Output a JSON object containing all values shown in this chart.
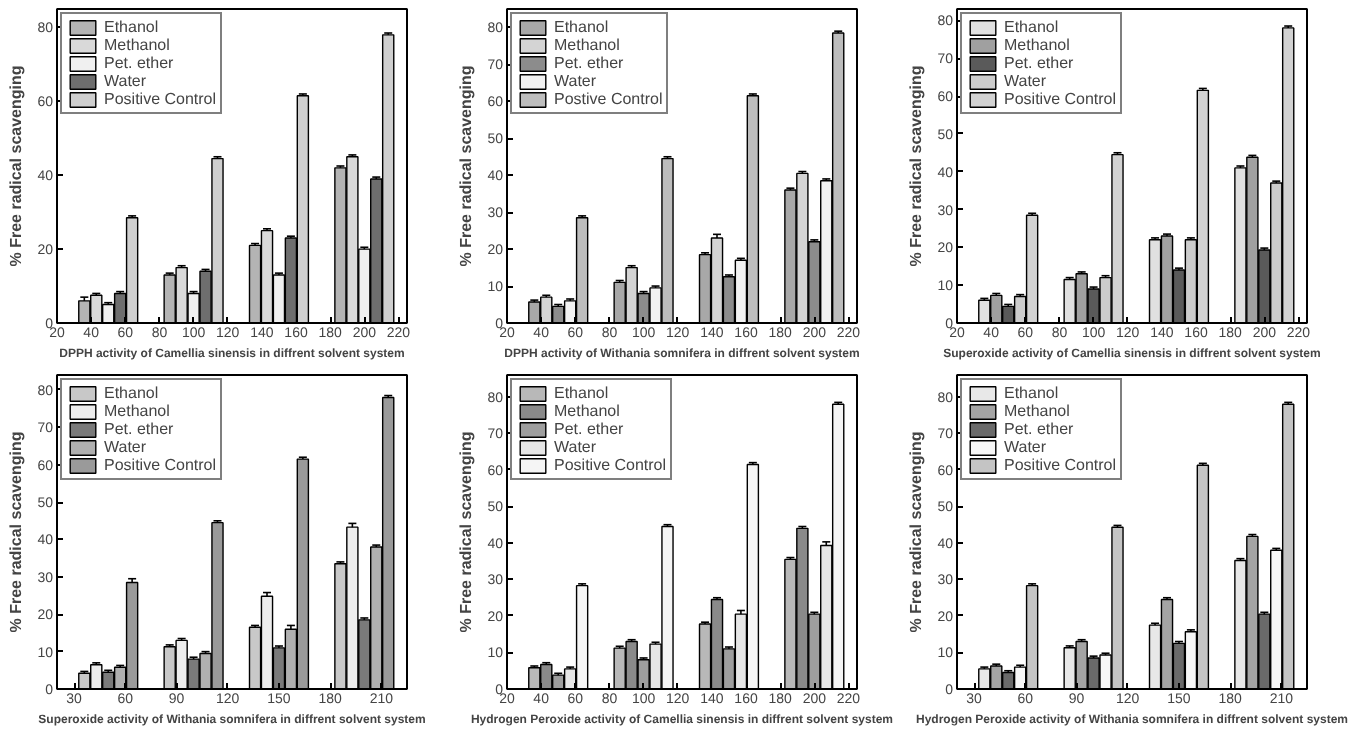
{
  "chart_data": [
    {
      "type": "bar",
      "xlabel": "DPPH activity of Camellia sinensis in diffrent solvent system",
      "ylabel": "% Free radical scavenging",
      "xlim": [
        20,
        225
      ],
      "xticks": [
        20,
        40,
        60,
        80,
        100,
        120,
        140,
        160,
        180,
        200,
        220
      ],
      "ylim": [
        0,
        85
      ],
      "yticks": [
        0,
        20,
        40,
        60,
        80
      ],
      "legend": "top left",
      "grid": false,
      "series": [
        {
          "name": "Ethanol",
          "color": "#b4b4b4",
          "x": [
            36,
            86,
            136,
            186
          ],
          "values": [
            6,
            13,
            21,
            42
          ],
          "errors": [
            1,
            0.5,
            0.5,
            0.5
          ]
        },
        {
          "name": "Methanol",
          "color": "#d9d9d9",
          "x": [
            43,
            93,
            143,
            193
          ],
          "values": [
            7.5,
            15,
            25,
            45
          ],
          "errors": [
            0.5,
            0.5,
            0.5,
            0.5
          ]
        },
        {
          "name": "Pet. ether",
          "color": "#f0f0f0",
          "x": [
            50,
            100,
            150,
            200
          ],
          "values": [
            5,
            8,
            13,
            20
          ],
          "errors": [
            0.5,
            0.5,
            0.5,
            0.5
          ]
        },
        {
          "name": "Water",
          "color": "#6e6e6e",
          "x": [
            57,
            107,
            157,
            207
          ],
          "values": [
            8,
            14,
            23,
            39
          ],
          "errors": [
            0.5,
            0.5,
            0.5,
            0.5
          ]
        },
        {
          "name": "Positive Control",
          "color": "#cfcfcf",
          "x": [
            64,
            114,
            164,
            214
          ],
          "values": [
            28.5,
            44.5,
            61.5,
            78
          ],
          "errors": [
            0.5,
            0.5,
            0.5,
            0.5
          ]
        }
      ]
    },
    {
      "type": "bar",
      "xlabel": "DPPH activity of Withania somnifera in diffrent solvent system",
      "ylabel": "% Free radical scavenging",
      "xlim": [
        20,
        225
      ],
      "xticks": [
        20,
        40,
        60,
        80,
        100,
        120,
        140,
        160,
        180,
        200,
        220
      ],
      "ylim": [
        0,
        85
      ],
      "yticks": [
        0,
        10,
        20,
        30,
        40,
        50,
        60,
        70,
        80
      ],
      "legend": "top left",
      "grid": false,
      "series": [
        {
          "name": "Ethanol",
          "color": "#a8a8a8",
          "x": [
            36,
            86,
            136,
            186
          ],
          "values": [
            5.7,
            11,
            18.5,
            36
          ],
          "errors": [
            0.5,
            0.5,
            0.5,
            0.5
          ]
        },
        {
          "name": "Methanol",
          "color": "#d4d4d4",
          "x": [
            43,
            93,
            143,
            193
          ],
          "values": [
            7,
            15,
            23,
            40.5
          ],
          "errors": [
            0.5,
            0.5,
            1,
            0.5
          ]
        },
        {
          "name": "Pet. ether",
          "color": "#8c8c8c",
          "x": [
            50,
            100,
            150,
            200
          ],
          "values": [
            4.5,
            8,
            12.5,
            22
          ],
          "errors": [
            0.5,
            0.5,
            0.5,
            0.5
          ]
        },
        {
          "name": "Water",
          "color": "#f2f2f2",
          "x": [
            57,
            107,
            157,
            207
          ],
          "values": [
            6,
            9.5,
            17,
            38.5
          ],
          "errors": [
            0.5,
            0.5,
            0.5,
            0.5
          ]
        },
        {
          "name": "Postive Control",
          "color": "#bdbdbd",
          "x": [
            64,
            114,
            164,
            214
          ],
          "values": [
            28.5,
            44.5,
            61.5,
            78.5
          ],
          "errors": [
            0.5,
            0.5,
            0.5,
            0.5
          ]
        }
      ]
    },
    {
      "type": "bar",
      "xlabel": "Superoxide activity of Camellia sinensis in diffrent solvent system",
      "ylabel": "% Free radical scavenging",
      "xlim": [
        20,
        225
      ],
      "xticks": [
        20,
        40,
        60,
        80,
        100,
        120,
        140,
        160,
        180,
        200,
        220
      ],
      "ylim": [
        0,
        83
      ],
      "yticks": [
        0,
        10,
        20,
        30,
        40,
        50,
        60,
        70,
        80
      ],
      "legend": "top left",
      "grid": false,
      "series": [
        {
          "name": "Ethanol",
          "color": "#e0e0e0",
          "x": [
            36,
            86,
            136,
            186
          ],
          "values": [
            6,
            11.5,
            22,
            41
          ],
          "errors": [
            0.5,
            0.5,
            0.5,
            0.5
          ]
        },
        {
          "name": "Methanol",
          "color": "#a0a0a0",
          "x": [
            43,
            93,
            143,
            193
          ],
          "values": [
            7.3,
            13,
            23,
            43.8
          ],
          "errors": [
            0.5,
            0.5,
            0.5,
            0.5
          ]
        },
        {
          "name": "Pet. ether",
          "color": "#5a5a5a",
          "x": [
            50,
            100,
            150,
            200
          ],
          "values": [
            4.4,
            9,
            14,
            19.3
          ],
          "errors": [
            0.5,
            0.5,
            0.5,
            0.5
          ]
        },
        {
          "name": "Water",
          "color": "#cccccc",
          "x": [
            57,
            107,
            157,
            207
          ],
          "values": [
            7,
            12,
            22,
            37
          ],
          "errors": [
            0.5,
            0.5,
            0.5,
            0.5
          ]
        },
        {
          "name": "Positive Control",
          "color": "#d2d2d2",
          "x": [
            64,
            114,
            164,
            214
          ],
          "values": [
            28.5,
            44.5,
            61.5,
            78
          ],
          "errors": [
            0.5,
            0.5,
            0.5,
            0.5
          ]
        }
      ]
    },
    {
      "type": "bar",
      "xlabel": "Superoxide activity of Withania somnifera in diffrent solvent system",
      "ylabel": "% Free radical scavenging",
      "xlim": [
        20,
        225
      ],
      "xticks": [
        30,
        60,
        90,
        120,
        150,
        180,
        210
      ],
      "ylim": [
        0,
        84
      ],
      "yticks": [
        0,
        10,
        20,
        30,
        40,
        50,
        60,
        70,
        80
      ],
      "legend": "top left",
      "grid": false,
      "series": [
        {
          "name": "Ethanol",
          "color": "#c8c8c8",
          "x": [
            36,
            86,
            136,
            186
          ],
          "values": [
            4.2,
            11.3,
            16.5,
            33.5
          ],
          "errors": [
            0.5,
            0.5,
            0.5,
            0.5
          ]
        },
        {
          "name": "Methanol",
          "color": "#ededed",
          "x": [
            43,
            93,
            143,
            193
          ],
          "values": [
            6.5,
            13,
            24.8,
            43.3
          ],
          "errors": [
            0.5,
            0.5,
            1,
            1
          ]
        },
        {
          "name": "Pet. ether",
          "color": "#7a7a7a",
          "x": [
            50,
            100,
            150,
            200
          ],
          "values": [
            4.5,
            8,
            11,
            18.5
          ],
          "errors": [
            0.5,
            0.5,
            0.5,
            0.5
          ]
        },
        {
          "name": "Water",
          "color": "#b0b0b0",
          "x": [
            57,
            107,
            157,
            207
          ],
          "values": [
            5.8,
            9.5,
            16,
            38
          ],
          "errors": [
            0.5,
            0.5,
            1,
            0.5
          ]
        },
        {
          "name": "Positive Control",
          "color": "#9a9a9a",
          "x": [
            64,
            114,
            164,
            214
          ],
          "values": [
            28.5,
            44.5,
            61.5,
            78
          ],
          "errors": [
            1,
            0.5,
            0.5,
            0.5
          ]
        }
      ]
    },
    {
      "type": "bar",
      "xlabel": "Hydrogen Peroxide activity of Camellia sinensis in diffrent solvent system",
      "ylabel": "% Free radical scavenging",
      "xlim": [
        20,
        225
      ],
      "xticks": [
        20,
        40,
        60,
        80,
        100,
        120,
        140,
        160,
        180,
        200,
        220
      ],
      "ylim": [
        0,
        86
      ],
      "yticks": [
        0,
        10,
        20,
        30,
        40,
        50,
        60,
        70,
        80
      ],
      "legend": "top left",
      "grid": false,
      "series": [
        {
          "name": "Ethanol",
          "color": "#b8b8b8",
          "x": [
            36,
            86,
            136,
            186
          ],
          "values": [
            5.8,
            11.2,
            17.8,
            35.5
          ],
          "errors": [
            0.5,
            0.5,
            0.5,
            0.5
          ]
        },
        {
          "name": "Methanol",
          "color": "#8a8a8a",
          "x": [
            43,
            93,
            143,
            193
          ],
          "values": [
            6.7,
            13,
            24.5,
            44
          ],
          "errors": [
            0.5,
            0.5,
            0.5,
            0.5
          ]
        },
        {
          "name": "Pet. ether",
          "color": "#9e9e9e",
          "x": [
            50,
            100,
            150,
            200
          ],
          "values": [
            3.8,
            8,
            11,
            20.5
          ],
          "errors": [
            0.5,
            0.5,
            0.5,
            0.5
          ]
        },
        {
          "name": "Water",
          "color": "#e6e6e6",
          "x": [
            57,
            107,
            157,
            207
          ],
          "values": [
            5.5,
            12.3,
            20.5,
            39.3
          ],
          "errors": [
            0.5,
            0.5,
            1,
            1
          ]
        },
        {
          "name": "Positive Control",
          "color": "#f5f5f5",
          "x": [
            64,
            114,
            164,
            214
          ],
          "values": [
            28.3,
            44.5,
            61.5,
            78
          ],
          "errors": [
            0.5,
            0.5,
            0.5,
            0.5
          ]
        }
      ]
    },
    {
      "type": "bar",
      "xlabel": "Hydrogen Peroxide activity of Withania somnifera in diffrent solvent system",
      "ylabel": "% Free radical scavenging",
      "xlim": [
        20,
        225
      ],
      "xticks": [
        30,
        60,
        90,
        120,
        150,
        180,
        210
      ],
      "ylim": [
        0,
        86
      ],
      "yticks": [
        0,
        10,
        20,
        30,
        40,
        50,
        60,
        70,
        80
      ],
      "legend": "top left",
      "grid": false,
      "series": [
        {
          "name": "Ethanol",
          "color": "#e8e8e8",
          "x": [
            36,
            86,
            136,
            186
          ],
          "values": [
            5.5,
            11.3,
            17.5,
            35.2
          ],
          "errors": [
            0.5,
            0.5,
            0.5,
            0.5
          ]
        },
        {
          "name": "Methanol",
          "color": "#a4a4a4",
          "x": [
            43,
            93,
            143,
            193
          ],
          "values": [
            6.3,
            13,
            24.5,
            41.8
          ],
          "errors": [
            0.5,
            0.5,
            0.5,
            0.5
          ]
        },
        {
          "name": "Pet. ether",
          "color": "#6a6a6a",
          "x": [
            50,
            100,
            150,
            200
          ],
          "values": [
            4.5,
            8.5,
            12.5,
            20.5
          ],
          "errors": [
            0.5,
            0.5,
            0.5,
            0.5
          ]
        },
        {
          "name": "Water",
          "color": "#f7f7f7",
          "x": [
            57,
            107,
            157,
            207
          ],
          "values": [
            6,
            9.3,
            15.7,
            38
          ],
          "errors": [
            0.5,
            0.5,
            0.5,
            0.5
          ]
        },
        {
          "name": "Positive Control",
          "color": "#c4c4c4",
          "x": [
            64,
            114,
            164,
            214
          ],
          "values": [
            28.3,
            44.3,
            61.3,
            78
          ],
          "errors": [
            0.5,
            0.5,
            0.5,
            0.5
          ]
        }
      ]
    }
  ]
}
